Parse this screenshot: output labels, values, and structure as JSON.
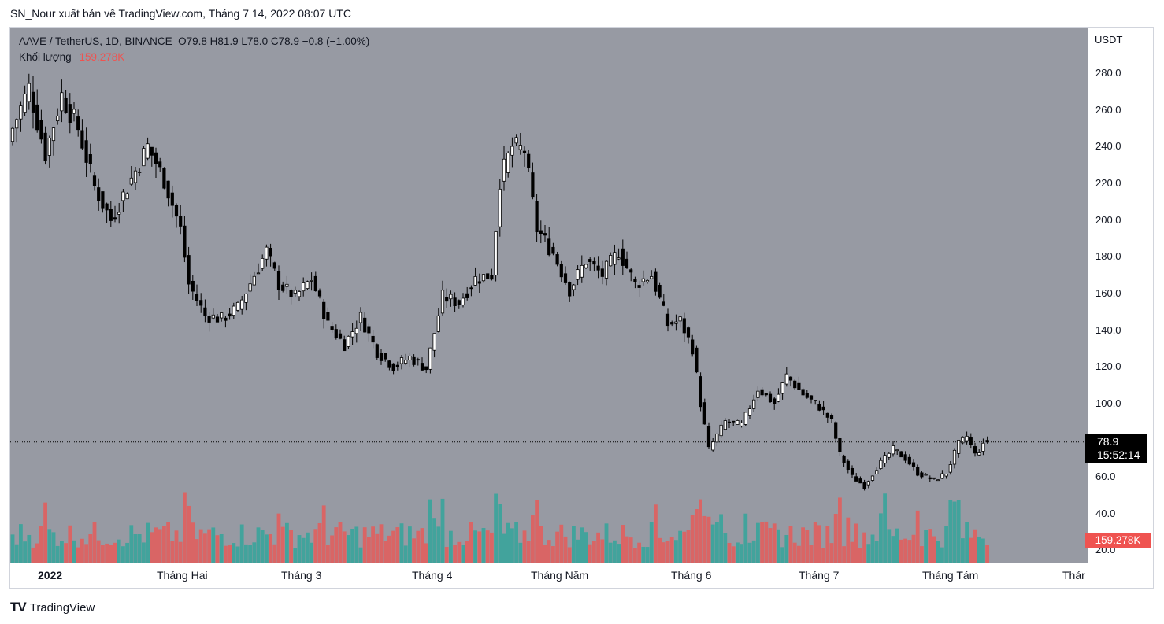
{
  "publisher_line": "SN_Nour xuất bản về TradingView.com, Tháng 7 14, 2022 08:07 UTC",
  "legend": {
    "symbol": "AAVE / TetherUS, 1D, BINANCE",
    "ohlc": "O79.8  H81.9  L78.0  C78.9  −0.8 (−1.00%)",
    "volume_label": "Khối lượng",
    "volume_value": "159.278K"
  },
  "price_axis": {
    "currency": "USDT",
    "ticks": [
      "280.0",
      "260.0",
      "240.0",
      "220.0",
      "200.0",
      "180.0",
      "160.0",
      "140.0",
      "120.0",
      "100.0",
      "60.0",
      "40.0",
      "20.0"
    ]
  },
  "time_axis": {
    "ticks": [
      "2022",
      "Tháng Hai",
      "Tháng 3",
      "Tháng 4",
      "Tháng Năm",
      "Tháng 6",
      "Tháng 7",
      "Tháng Tám",
      "Thár"
    ]
  },
  "last_price": {
    "price": "78.9",
    "countdown": "15:52:14"
  },
  "volume_badge": "159.278K",
  "footer": {
    "brand": "TradingView"
  },
  "colors": {
    "plot_bg": "#979aa3",
    "bull_candle": "#ffffff",
    "bear_candle": "#000000",
    "volume_up": "#26a69a",
    "volume_down": "#ef5350",
    "badge_red": "#ef5350"
  },
  "chart_data": {
    "type": "candlestick",
    "title": "AAVE / TetherUS, 1D, BINANCE",
    "ylabel": "USDT",
    "ylim": [
      18,
      300
    ],
    "grid": false,
    "close_points": [
      [
        "2021-12-31",
        250
      ],
      [
        "2022-01-04",
        272
      ],
      [
        "2022-01-08",
        236
      ],
      [
        "2022-01-12",
        268
      ],
      [
        "2022-01-16",
        250
      ],
      [
        "2022-01-20",
        218
      ],
      [
        "2022-01-24",
        200
      ],
      [
        "2022-01-28",
        218
      ],
      [
        "2022-02-02",
        240
      ],
      [
        "2022-02-06",
        222
      ],
      [
        "2022-02-10",
        195
      ],
      [
        "2022-02-12",
        165
      ],
      [
        "2022-02-16",
        148
      ],
      [
        "2022-02-20",
        146
      ],
      [
        "2022-02-24",
        152
      ],
      [
        "2022-02-28",
        170
      ],
      [
        "2022-03-03",
        183
      ],
      [
        "2022-03-06",
        165
      ],
      [
        "2022-03-10",
        158
      ],
      [
        "2022-03-14",
        168
      ],
      [
        "2022-03-18",
        143
      ],
      [
        "2022-03-22",
        132
      ],
      [
        "2022-03-26",
        147
      ],
      [
        "2022-03-30",
        128
      ],
      [
        "2022-04-03",
        120
      ],
      [
        "2022-04-07",
        125
      ],
      [
        "2022-04-11",
        119
      ],
      [
        "2022-04-15",
        158
      ],
      [
        "2022-04-19",
        155
      ],
      [
        "2022-04-23",
        168
      ],
      [
        "2022-04-27",
        170
      ],
      [
        "2022-04-29",
        222
      ],
      [
        "2022-05-02",
        240
      ],
      [
        "2022-05-05",
        238
      ],
      [
        "2022-05-08",
        195
      ],
      [
        "2022-05-12",
        182
      ],
      [
        "2022-05-16",
        162
      ],
      [
        "2022-05-20",
        178
      ],
      [
        "2022-05-24",
        170
      ],
      [
        "2022-05-28",
        183
      ],
      [
        "2022-06-01",
        165
      ],
      [
        "2022-06-05",
        170
      ],
      [
        "2022-06-09",
        143
      ],
      [
        "2022-06-12",
        145
      ],
      [
        "2022-06-15",
        130
      ],
      [
        "2022-06-17",
        100
      ],
      [
        "2022-06-19",
        75
      ],
      [
        "2022-06-23",
        90
      ],
      [
        "2022-06-27",
        88
      ],
      [
        "2022-07-01",
        108
      ],
      [
        "2022-07-05",
        100
      ],
      [
        "2022-07-08",
        115
      ],
      [
        "2022-07-12",
        105
      ],
      [
        "2022-07-16",
        98
      ],
      [
        "2022-07-19",
        90
      ],
      [
        "2022-07-21",
        72
      ],
      [
        "2022-07-24",
        60
      ],
      [
        "2022-07-27",
        55
      ],
      [
        "2022-07-30",
        65
      ],
      [
        "2022-08-03",
        75
      ],
      [
        "2022-08-06",
        70
      ],
      [
        "2022-08-09",
        62
      ],
      [
        "2022-08-13",
        58
      ],
      [
        "2022-08-16",
        62
      ],
      [
        "2022-08-19",
        78
      ],
      [
        "2022-08-21",
        82
      ],
      [
        "2022-08-23",
        72
      ],
      [
        "2022-08-26",
        79
      ]
    ],
    "last_candle": {
      "open": 79.8,
      "high": 81.9,
      "low": 78.0,
      "close": 78.9
    }
  }
}
